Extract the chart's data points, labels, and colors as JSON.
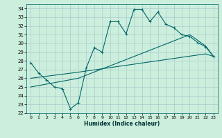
{
  "xlabel": "Humidex (Indice chaleur)",
  "bg_color": "#cceedd",
  "grid_color": "#aacccc",
  "line_color": "#006666",
  "xlim": [
    -0.5,
    23.5
  ],
  "ylim": [
    22,
    34.5
  ],
  "xticks": [
    0,
    1,
    2,
    3,
    4,
    5,
    6,
    7,
    8,
    9,
    10,
    11,
    12,
    13,
    14,
    15,
    16,
    17,
    18,
    19,
    20,
    21,
    22,
    23
  ],
  "yticks": [
    22,
    23,
    24,
    25,
    26,
    27,
    28,
    29,
    30,
    31,
    32,
    33,
    34
  ],
  "line1_x": [
    0,
    1,
    2,
    3,
    4,
    5,
    6,
    7,
    8,
    9,
    10,
    11,
    12,
    13,
    14,
    15,
    16,
    17,
    18,
    19,
    20,
    21,
    22,
    23
  ],
  "line1_y": [
    27.8,
    26.6,
    25.8,
    25.0,
    24.8,
    22.5,
    23.2,
    27.2,
    29.5,
    29.0,
    32.5,
    32.5,
    31.1,
    33.9,
    33.9,
    32.5,
    33.6,
    32.2,
    31.8,
    31.0,
    30.8,
    30.1,
    29.6,
    28.5
  ],
  "line2_x": [
    0,
    6,
    22,
    23
  ],
  "line2_y": [
    26.0,
    26.7,
    28.8,
    28.5
  ],
  "line3_x": [
    0,
    6,
    20,
    22,
    23
  ],
  "line3_y": [
    25.0,
    26.0,
    31.0,
    29.7,
    28.5
  ]
}
